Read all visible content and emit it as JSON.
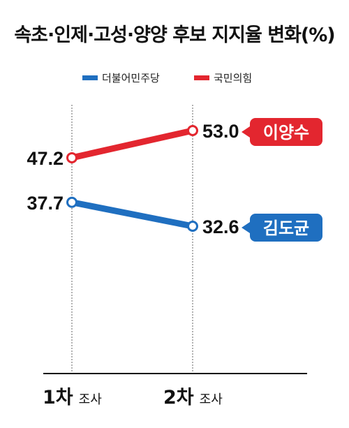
{
  "chart_data": {
    "type": "line",
    "title": "속초·인제·고성·양양 후보 지지율 변화(%)",
    "categories": [
      {
        "round": "1차",
        "suffix": "조사"
      },
      {
        "round": "2차",
        "suffix": "조사"
      }
    ],
    "series": [
      {
        "name": "더불어민주당",
        "candidate": "김도균",
        "values": [
          37.7,
          32.6
        ],
        "labels": [
          "37.7",
          "32.6"
        ],
        "color": "#1f6fc0"
      },
      {
        "name": "국민의힘",
        "candidate": "이양수",
        "values": [
          47.2,
          53.0
        ],
        "labels": [
          "47.2",
          "53.0"
        ],
        "color": "#e3262f"
      }
    ],
    "legend": "top-center",
    "grid": false
  }
}
